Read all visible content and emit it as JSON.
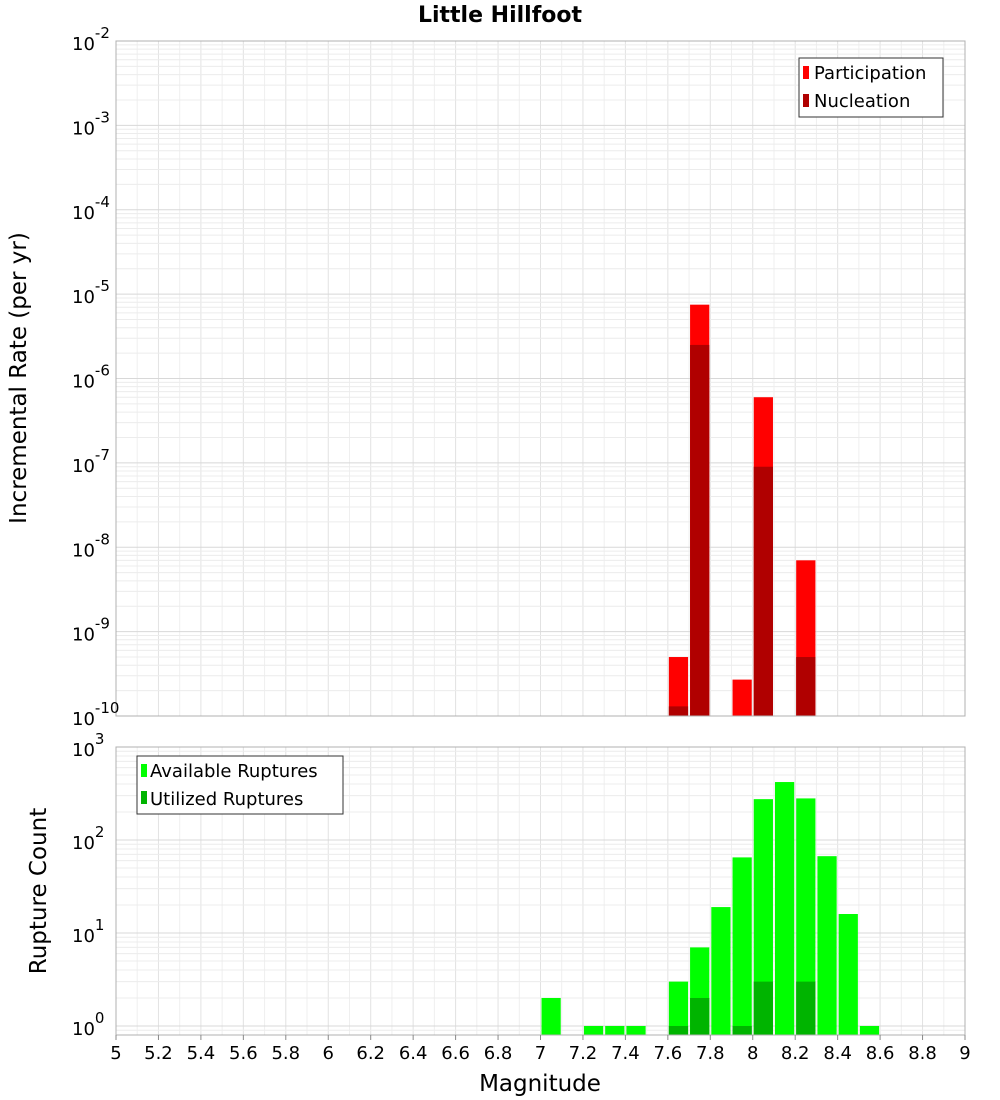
{
  "chart_data": [
    {
      "type": "bar",
      "title": "Little Hillfoot",
      "ylabel": "Incremental Rate (per yr)",
      "yscale": "log",
      "ylim": [
        1e-10,
        0.01
      ],
      "y_tick_base": "10",
      "y_tick_exponents": [
        "-10",
        "-9",
        "-8",
        "-7",
        "-6",
        "-5",
        "-4",
        "-3",
        "-2"
      ],
      "xlim": [
        5,
        9
      ],
      "grid": true,
      "legend_position": "top-right",
      "legend": [
        "Participation",
        "Nucleation"
      ],
      "series": [
        {
          "name": "Participation",
          "color": "#ff0000",
          "x": [
            7.65,
            7.75,
            7.95,
            8.05,
            8.25
          ],
          "values": [
            5e-10,
            7.5e-06,
            2.7e-10,
            6e-07,
            7e-09
          ]
        },
        {
          "name": "Nucleation",
          "color": "#b00000",
          "x": [
            7.65,
            7.75,
            8.05,
            8.25
          ],
          "values": [
            1.3e-10,
            2.5e-06,
            9e-08,
            5e-10
          ]
        }
      ]
    },
    {
      "type": "bar",
      "ylabel": "Rupture Count",
      "yscale": "log",
      "ylim": [
        0.8,
        1000
      ],
      "y_tick_base": "10",
      "y_tick_exponents": [
        "0",
        "1",
        "2",
        "3"
      ],
      "xlabel": "Magnitude",
      "xlim": [
        5,
        9
      ],
      "x_ticks": [
        "5",
        "5.2",
        "5.4",
        "5.6",
        "5.8",
        "6",
        "6.2",
        "6.4",
        "6.6",
        "6.8",
        "7",
        "7.2",
        "7.4",
        "7.6",
        "7.8",
        "8",
        "8.2",
        "8.4",
        "8.6",
        "8.8",
        "9"
      ],
      "grid": true,
      "legend_position": "top-left",
      "legend": [
        "Available Ruptures",
        "Utilized Ruptures"
      ],
      "series": [
        {
          "name": "Available Ruptures",
          "color": "#00ff00",
          "x": [
            7.05,
            7.25,
            7.35,
            7.45,
            7.65,
            7.75,
            7.85,
            7.95,
            8.05,
            8.15,
            8.25,
            8.35,
            8.45,
            8.55
          ],
          "values": [
            2,
            1,
            1,
            1,
            3,
            7,
            19,
            65,
            275,
            420,
            280,
            67,
            16,
            1
          ]
        },
        {
          "name": "Utilized Ruptures",
          "color": "#00b400",
          "x": [
            7.65,
            7.75,
            7.95,
            8.05,
            8.25
          ],
          "values": [
            1,
            2,
            1,
            3,
            3
          ]
        }
      ]
    }
  ]
}
